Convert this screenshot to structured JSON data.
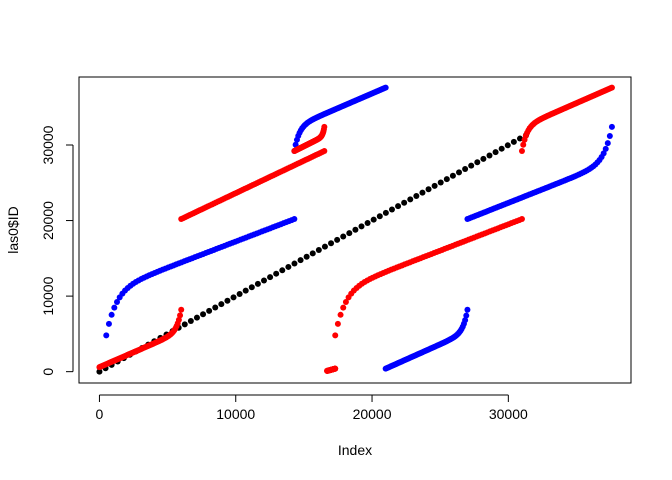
{
  "chart_data": {
    "type": "scatter",
    "title": "",
    "xlabel": "Index",
    "ylabel": "las0$ID",
    "xlim": [
      -1500,
      39000
    ],
    "ylim": [
      -1500,
      39000
    ],
    "x_ticks": [
      0,
      10000,
      20000,
      30000
    ],
    "y_ticks": [
      0,
      10000,
      20000,
      30000
    ],
    "x_tick_labels": [
      "0",
      "10000",
      "20000",
      "30000"
    ],
    "y_tick_labels": [
      "0",
      "10000",
      "20000",
      "30000"
    ],
    "grid": false,
    "legend": "none",
    "series": [
      {
        "color": "#000000",
        "segments": [
          {
            "shape": "linear",
            "x": [
              0,
              31300
            ],
            "y": [
              0,
              31300
            ]
          }
        ]
      },
      {
        "color": "#0000ff",
        "segments": [
          {
            "shape": "decel",
            "x": [
              500,
              14300
            ],
            "y": [
              4800,
              20200
            ]
          },
          {
            "shape": "decel",
            "x": [
              14300,
              21000
            ],
            "y": [
              29200,
              37600
            ]
          },
          {
            "shape": "accel",
            "x": [
              21000,
              27000
            ],
            "y": [
              400,
              8200
            ]
          },
          {
            "shape": "accel",
            "x": [
              27000,
              37600
            ],
            "y": [
              20200,
              32400
            ]
          }
        ]
      },
      {
        "color": "#ff0000",
        "segments": [
          {
            "shape": "accel",
            "x": [
              0,
              6000
            ],
            "y": [
              600,
              8200
            ]
          },
          {
            "shape": "linear",
            "x": [
              6000,
              16500
            ],
            "y": [
              20200,
              29200
            ]
          },
          {
            "shape": "accel",
            "x": [
              14300,
              16500
            ],
            "y": [
              29200,
              32400
            ]
          },
          {
            "shape": "linear",
            "x": [
              16700,
              17300
            ],
            "y": [
              100,
              400
            ]
          },
          {
            "shape": "decel",
            "x": [
              17300,
              31000
            ],
            "y": [
              4800,
              20200
            ]
          },
          {
            "shape": "decel",
            "x": [
              31000,
              37600
            ],
            "y": [
              29200,
              37600
            ]
          }
        ]
      }
    ]
  }
}
